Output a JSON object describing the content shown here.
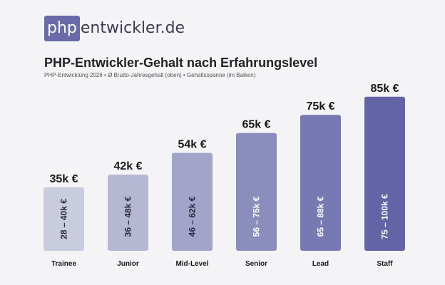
{
  "logo": {
    "prefix": "php",
    "suffix": "entwickler.de"
  },
  "chart_data": {
    "type": "bar",
    "title": "PHP-Entwickler-Gehalt nach Erfahrungslevel",
    "subtitle": "PHP-Entwicklung 2026 • Ø Brutto-Jahresgehalt (oben) • Gehaltsspanne (im Balken)",
    "categories": [
      "Trainee",
      "Junior",
      "Mid-Level",
      "Senior",
      "Lead",
      "Staff"
    ],
    "values": [
      35,
      42,
      54,
      65,
      75,
      85
    ],
    "value_labels": [
      "35k €",
      "42k €",
      "54k €",
      "65k €",
      "75k €",
      "85k €"
    ],
    "range_labels": [
      "28 – 40k €",
      "36 – 48k €",
      "46 – 62k €",
      "56 – 75k €",
      "65 – 88k €",
      "75 – 100k €"
    ],
    "colors": [
      "#c9cbdf",
      "#b5b7d3",
      "#a2a4c9",
      "#8b8dbd",
      "#7779b2",
      "#6264a6"
    ],
    "grid": false,
    "legend": "none"
  }
}
